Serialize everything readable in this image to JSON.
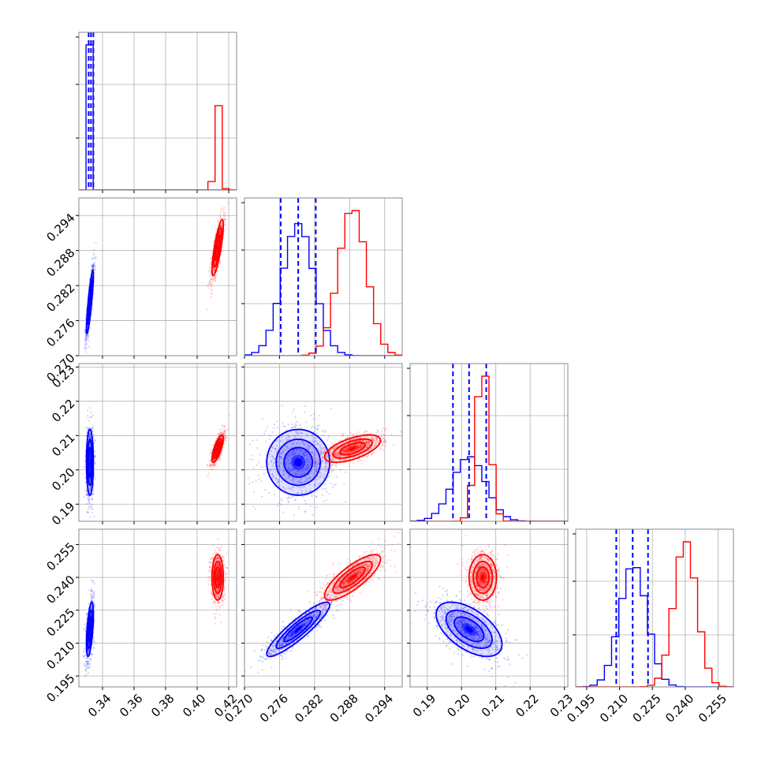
{
  "chart_data": {
    "type": "corner",
    "title": "",
    "grid": true,
    "colors": {
      "blue": "#0000ff",
      "red": "#ff0000"
    },
    "series": [
      {
        "color": "blue",
        "means": [
          0.332,
          0.2792,
          0.2022,
          0.2163
        ],
        "stds": [
          0.0011,
          0.0027,
          0.0048,
          0.0062
        ],
        "quantiles": [
          [
            0.3312,
            0.3327,
            0.3342
          ],
          [
            0.2762,
            0.2792,
            0.2822
          ],
          [
            0.1975,
            0.2022,
            0.2072
          ],
          [
            0.2085,
            0.216,
            0.223
          ]
        ]
      },
      {
        "color": "red",
        "means": [
          0.413,
          0.2885,
          0.2062,
          0.24
        ],
        "stds": [
          0.0018,
          0.0024,
          0.002,
          0.0052
        ],
        "quantiles": []
      }
    ],
    "correlations": {
      "blue": {
        "1-0": 0.85,
        "2-0": 0.0,
        "3-0": 0.55,
        "2-1": 0.0,
        "3-1": 0.9,
        "3-2": -0.55
      },
      "red": {
        "1-0": 0.8,
        "2-0": 0.75,
        "3-0": 0.0,
        "2-1": 0.6,
        "3-1": 0.8,
        "3-2": 0.0
      }
    },
    "axes": [
      {
        "range": [
          0.325,
          0.425
        ],
        "ticks": [
          "0.34",
          "0.36",
          "0.38",
          "0.40",
          "0.42"
        ]
      },
      {
        "range": [
          0.27,
          0.297
        ],
        "ticks": [
          "0.270",
          "0.276",
          "0.282",
          "0.288",
          "0.294"
        ]
      },
      {
        "range": [
          0.185,
          0.231
        ],
        "ticks": [
          "0.19",
          "0.20",
          "0.21",
          "0.22",
          "0.23"
        ]
      },
      {
        "range": [
          0.19,
          0.262
        ],
        "ticks": [
          "0.195",
          "0.210",
          "0.225",
          "0.240",
          "0.255"
        ]
      }
    ]
  }
}
